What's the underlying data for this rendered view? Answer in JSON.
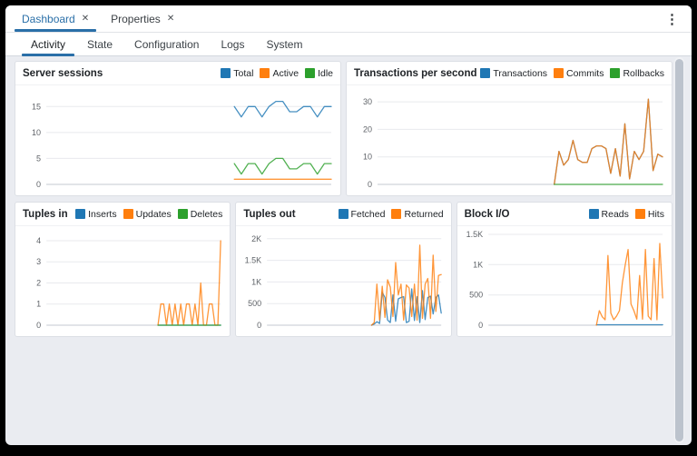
{
  "window": {
    "menu_icon": "⋮"
  },
  "tab_bar": {
    "tabs": [
      {
        "label": "Dashboard",
        "close_icon": "✕",
        "active": true
      },
      {
        "label": "Properties",
        "close_icon": "✕",
        "active": false
      }
    ]
  },
  "subnav": {
    "items": [
      {
        "label": "Activity"
      },
      {
        "label": "State"
      },
      {
        "label": "Configuration"
      },
      {
        "label": "Logs"
      },
      {
        "label": "System"
      }
    ],
    "active": "Activity"
  },
  "colors": {
    "accent_blue": "#2a6fa8",
    "series_blue": "#1f77b4",
    "series_orange": "#ff7f0e",
    "series_green": "#2ca02c"
  },
  "panels": [
    {
      "title": "Server sessions",
      "legend": [
        {
          "label": "Total",
          "color": "#1f77b4"
        },
        {
          "label": "Active",
          "color": "#ff7f0e"
        },
        {
          "label": "Idle",
          "color": "#2ca02c"
        }
      ]
    },
    {
      "title": "Transactions per second",
      "legend": [
        {
          "label": "Transactions",
          "color": "#1f77b4"
        },
        {
          "label": "Commits",
          "color": "#ff7f0e"
        },
        {
          "label": "Rollbacks",
          "color": "#2ca02c"
        }
      ]
    },
    {
      "title": "Tuples in",
      "legend": [
        {
          "label": "Inserts",
          "color": "#1f77b4"
        },
        {
          "label": "Updates",
          "color": "#ff7f0e"
        },
        {
          "label": "Deletes",
          "color": "#2ca02c"
        }
      ]
    },
    {
      "title": "Tuples out",
      "legend": [
        {
          "label": "Fetched",
          "color": "#1f77b4"
        },
        {
          "label": "Returned",
          "color": "#ff7f0e"
        }
      ]
    },
    {
      "title": "Block I/O",
      "legend": [
        {
          "label": "Reads",
          "color": "#1f77b4"
        },
        {
          "label": "Hits",
          "color": "#ff7f0e"
        }
      ]
    }
  ],
  "chart_data": [
    {
      "type": "line",
      "title": "Server sessions",
      "ylim": [
        0,
        17.5
      ],
      "grid": true,
      "legend_position": "top-right",
      "yticks": [
        {
          "value": 0,
          "label": "0"
        },
        {
          "value": 5,
          "label": "5"
        },
        {
          "value": 10,
          "label": "10"
        },
        {
          "value": 15,
          "label": "15"
        }
      ],
      "fill_from": 0.66,
      "series": [
        {
          "name": "Total",
          "color": "#1f77b4",
          "values": [
            15,
            13,
            15,
            15,
            13,
            15,
            16,
            16,
            14,
            14,
            15,
            15,
            13,
            15,
            15
          ]
        },
        {
          "name": "Active",
          "color": "#ff7f0e",
          "values": [
            1,
            1,
            1,
            1,
            1,
            1,
            1,
            1,
            1,
            1,
            1,
            1,
            1,
            1,
            1
          ]
        },
        {
          "name": "Idle",
          "color": "#2ca02c",
          "values": [
            4,
            2,
            4,
            4,
            2,
            4,
            5,
            5,
            3,
            3,
            4,
            4,
            2,
            4,
            4
          ]
        }
      ]
    },
    {
      "type": "line",
      "title": "Transactions per second",
      "ylim": [
        0,
        33
      ],
      "grid": true,
      "legend_position": "top-right",
      "yticks": [
        {
          "value": 0,
          "label": "0"
        },
        {
          "value": 10,
          "label": "10"
        },
        {
          "value": 20,
          "label": "20"
        },
        {
          "value": 30,
          "label": "30"
        }
      ],
      "fill_from": 0.62,
      "series": [
        {
          "name": "Transactions",
          "color": "#1f77b4",
          "values": [
            0,
            12,
            7,
            9,
            16,
            9,
            8,
            8,
            13,
            14,
            14,
            13,
            4,
            13,
            3,
            22,
            2,
            12,
            9,
            12,
            31,
            5,
            11,
            10
          ]
        },
        {
          "name": "Commits",
          "color": "#ff7f0e",
          "values": [
            0,
            12,
            7,
            9,
            16,
            9,
            8,
            8,
            13,
            14,
            14,
            13,
            4,
            13,
            3,
            22,
            2,
            12,
            9,
            12,
            31,
            5,
            11,
            10
          ]
        },
        {
          "name": "Rollbacks",
          "color": "#2ca02c",
          "values": [
            0,
            0,
            0,
            0,
            0,
            0,
            0,
            0,
            0,
            0,
            0,
            0,
            0,
            0,
            0,
            0,
            0,
            0,
            0,
            0,
            0,
            0,
            0,
            0
          ]
        }
      ]
    },
    {
      "type": "line",
      "title": "Tuples in",
      "ylim": [
        0,
        4.3
      ],
      "grid": true,
      "legend_position": "top-right",
      "yticks": [
        {
          "value": 0,
          "label": "0"
        },
        {
          "value": 1,
          "label": "1"
        },
        {
          "value": 2,
          "label": "2"
        },
        {
          "value": 3,
          "label": "3"
        },
        {
          "value": 4,
          "label": "4"
        }
      ],
      "fill_from": 0.64,
      "series": [
        {
          "name": "Inserts",
          "color": "#1f77b4",
          "values": [
            0,
            0,
            0,
            0,
            0,
            0,
            0,
            0,
            0,
            0,
            0,
            0,
            0,
            0,
            0,
            0,
            0,
            0,
            0,
            0,
            0,
            0,
            0
          ]
        },
        {
          "name": "Updates",
          "color": "#ff7f0e",
          "values": [
            0,
            1,
            1,
            0,
            1,
            0,
            1,
            0,
            1,
            0,
            1,
            1,
            0,
            1,
            0,
            2,
            0,
            0,
            1,
            1,
            0,
            0,
            4
          ]
        },
        {
          "name": "Deletes",
          "color": "#2ca02c",
          "values": [
            0,
            0,
            0,
            0,
            0,
            0,
            0,
            0,
            0,
            0,
            0,
            0,
            0,
            0,
            0,
            0,
            0,
            0,
            0,
            0,
            0,
            0,
            0
          ]
        }
      ]
    },
    {
      "type": "line",
      "title": "Tuples out",
      "ylim": [
        0,
        2100
      ],
      "grid": true,
      "legend_position": "top-right",
      "yticks": [
        {
          "value": 0,
          "label": "0"
        },
        {
          "value": 500,
          "label": "500"
        },
        {
          "value": 1000,
          "label": "1K"
        },
        {
          "value": 1500,
          "label": "1.5K"
        },
        {
          "value": 2000,
          "label": "2K"
        }
      ],
      "fill_from": 0.6,
      "series": [
        {
          "name": "Fetched",
          "color": "#1f77b4",
          "values": [
            0,
            30,
            80,
            40,
            760,
            640,
            120,
            60,
            700,
            90,
            610,
            640,
            660,
            60,
            90,
            840,
            110,
            660,
            60,
            800,
            130,
            640,
            670,
            260,
            640,
            700,
            280
          ]
        },
        {
          "name": "Returned",
          "color": "#ff7f0e",
          "values": [
            0,
            60,
            950,
            120,
            900,
            180,
            1050,
            880,
            200,
            1450,
            700,
            950,
            120,
            930,
            860,
            200,
            950,
            120,
            1850,
            160,
            950,
            1080,
            160,
            1620,
            320,
            1150,
            1170
          ]
        }
      ]
    },
    {
      "type": "line",
      "title": "Block I/O",
      "ylim": [
        0,
        1500
      ],
      "grid": true,
      "legend_position": "top-right",
      "yticks": [
        {
          "value": 0,
          "label": "0"
        },
        {
          "value": 500,
          "label": "500"
        },
        {
          "value": 1000,
          "label": "1K"
        },
        {
          "value": 1500,
          "label": "1.5K"
        }
      ],
      "fill_from": 0.62,
      "series": [
        {
          "name": "Reads",
          "color": "#1f77b4",
          "values": [
            8,
            8,
            8,
            8,
            8,
            8,
            8,
            8,
            8,
            8,
            8,
            8,
            8,
            8,
            8,
            8,
            8,
            8,
            8,
            8,
            8,
            8,
            8,
            8
          ]
        },
        {
          "name": "Hits",
          "color": "#ff7f0e",
          "values": [
            0,
            240,
            140,
            90,
            1150,
            200,
            90,
            150,
            240,
            700,
            1000,
            1250,
            350,
            240,
            100,
            820,
            100,
            1250,
            150,
            90,
            1100,
            90,
            1350,
            450
          ]
        }
      ]
    }
  ]
}
